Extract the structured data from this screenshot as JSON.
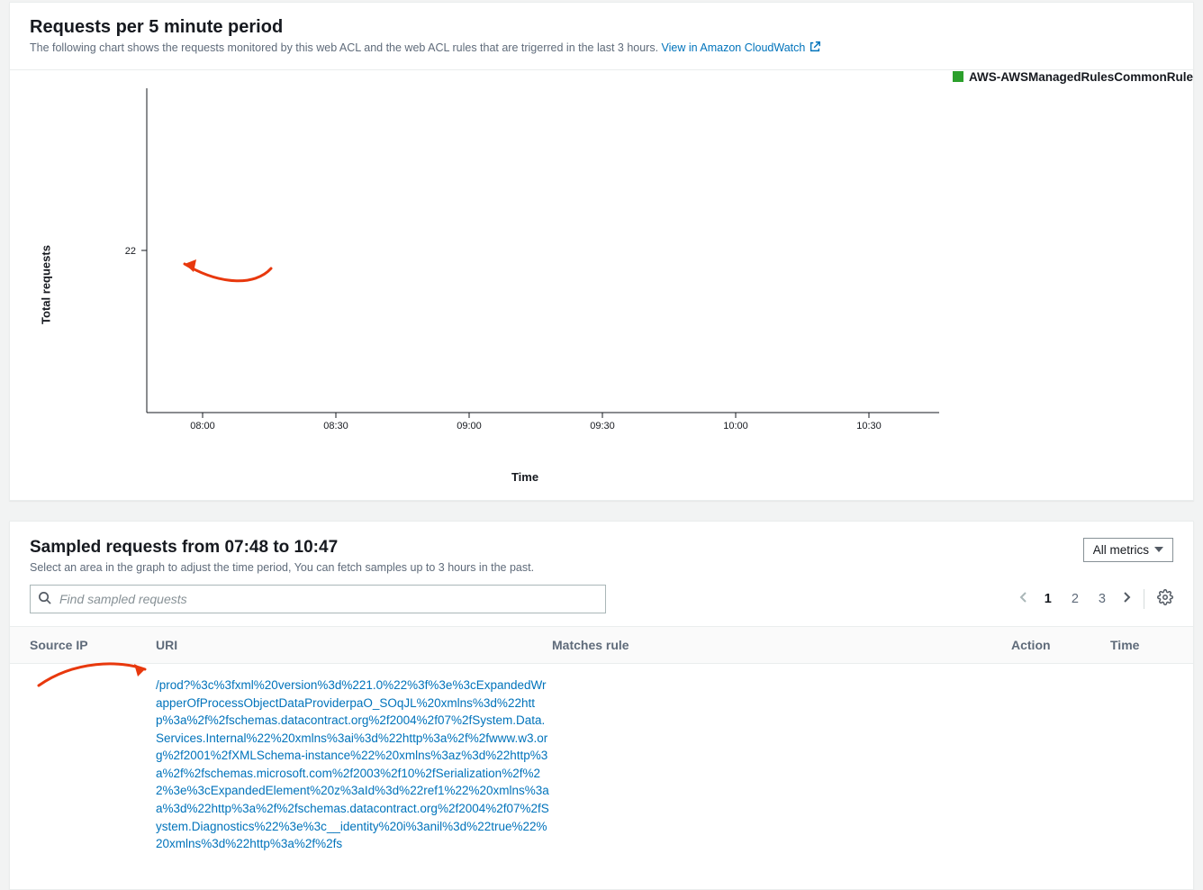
{
  "chart_panel": {
    "title": "Requests per 5 minute period",
    "subtitle_prefix": "The following chart shows the requests monitored by this web ACL and the web ACL rules that are trigerred in the last 3 hours. ",
    "cloudwatch_link": "View in Amazon CloudWatch",
    "legend_label": "AWS-AWSManagedRulesCommonRule",
    "legend_color": "#2ca02c",
    "y_axis_label": "Total requests",
    "x_axis_label": "Time",
    "y_tick_label": "22",
    "x_ticks": [
      "08:00",
      "08:30",
      "09:00",
      "09:30",
      "10:00",
      "10:30"
    ],
    "axis_color": "#16191f",
    "tick_fontsize": 11,
    "annotation_color": "#e8380d"
  },
  "sampled": {
    "title": "Sampled requests from 07:48 to 10:47",
    "subtitle": "Select an area in the graph to adjust the time period, You can fetch samples up to 3 hours in the past.",
    "metrics_button": "All metrics",
    "search_placeholder": "Find sampled requests",
    "pages": [
      "1",
      "2",
      "3"
    ],
    "current_page": "1",
    "columns": {
      "source_ip": "Source IP",
      "uri": "URI",
      "matches_rule": "Matches rule",
      "action": "Action",
      "time": "Time"
    },
    "row1_uri": "/prod?%3c%3fxml%20version%3d%221.0%22%3f%3e%3cExpandedWrapperOfProcessObjectDataProviderpaO_SOqJL%20xmlns%3d%22http%3a%2f%2fschemas.datacontract.org%2f2004%2f07%2fSystem.Data.Services.Internal%22%20xmlns%3ai%3d%22http%3a%2f%2fwww.w3.org%2f2001%2fXMLSchema-instance%22%20xmlns%3az%3d%22http%3a%2f%2fschemas.microsoft.com%2f2003%2f10%2fSerialization%2f%22%3e%3cExpandedElement%20z%3aId%3d%22ref1%22%20xmlns%3aa%3d%22http%3a%2f%2fschemas.datacontract.org%2f2004%2f07%2fSystem.Diagnostics%22%3e%3c__identity%20i%3anil%3d%22true%22%20xmlns%3d%22http%3a%2f%2fs",
    "annotation_color": "#e8380d"
  }
}
